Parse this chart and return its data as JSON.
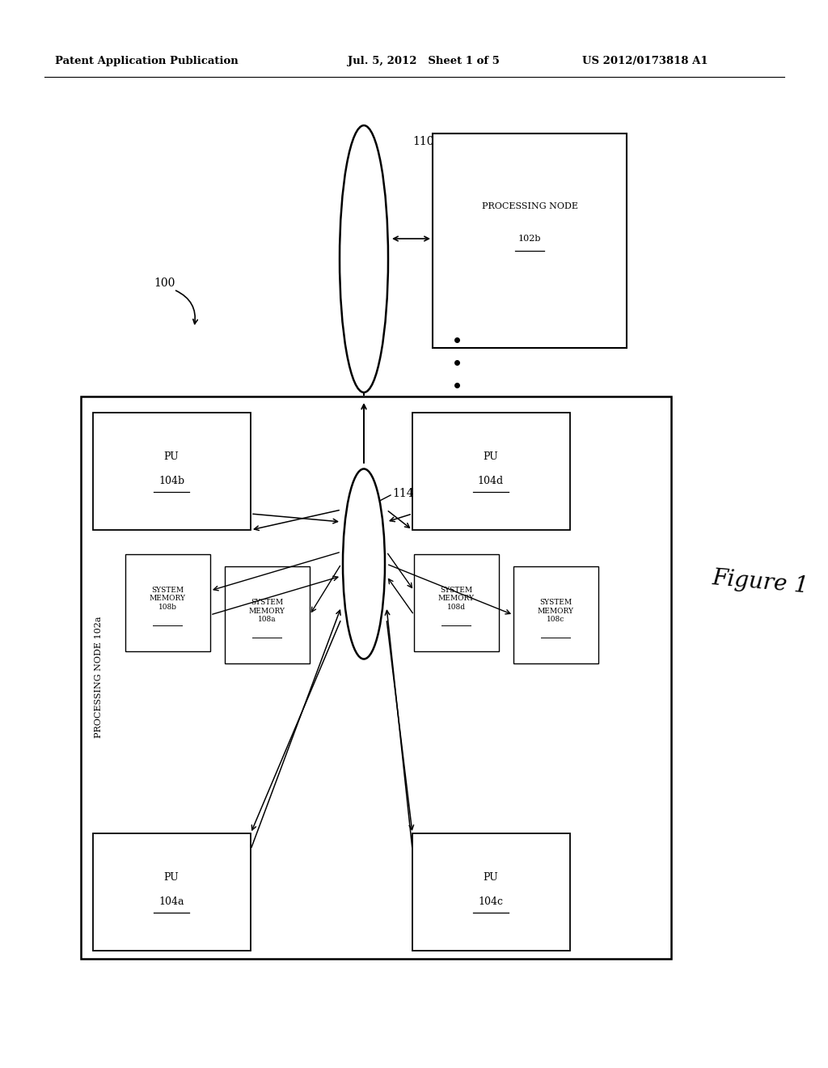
{
  "bg_color": "#ffffff",
  "header_left": "Patent Application Publication",
  "header_mid": "Jul. 5, 2012   Sheet 1 of 5",
  "header_right": "US 2012/0173818 A1",
  "figure_label": "Figure 1"
}
